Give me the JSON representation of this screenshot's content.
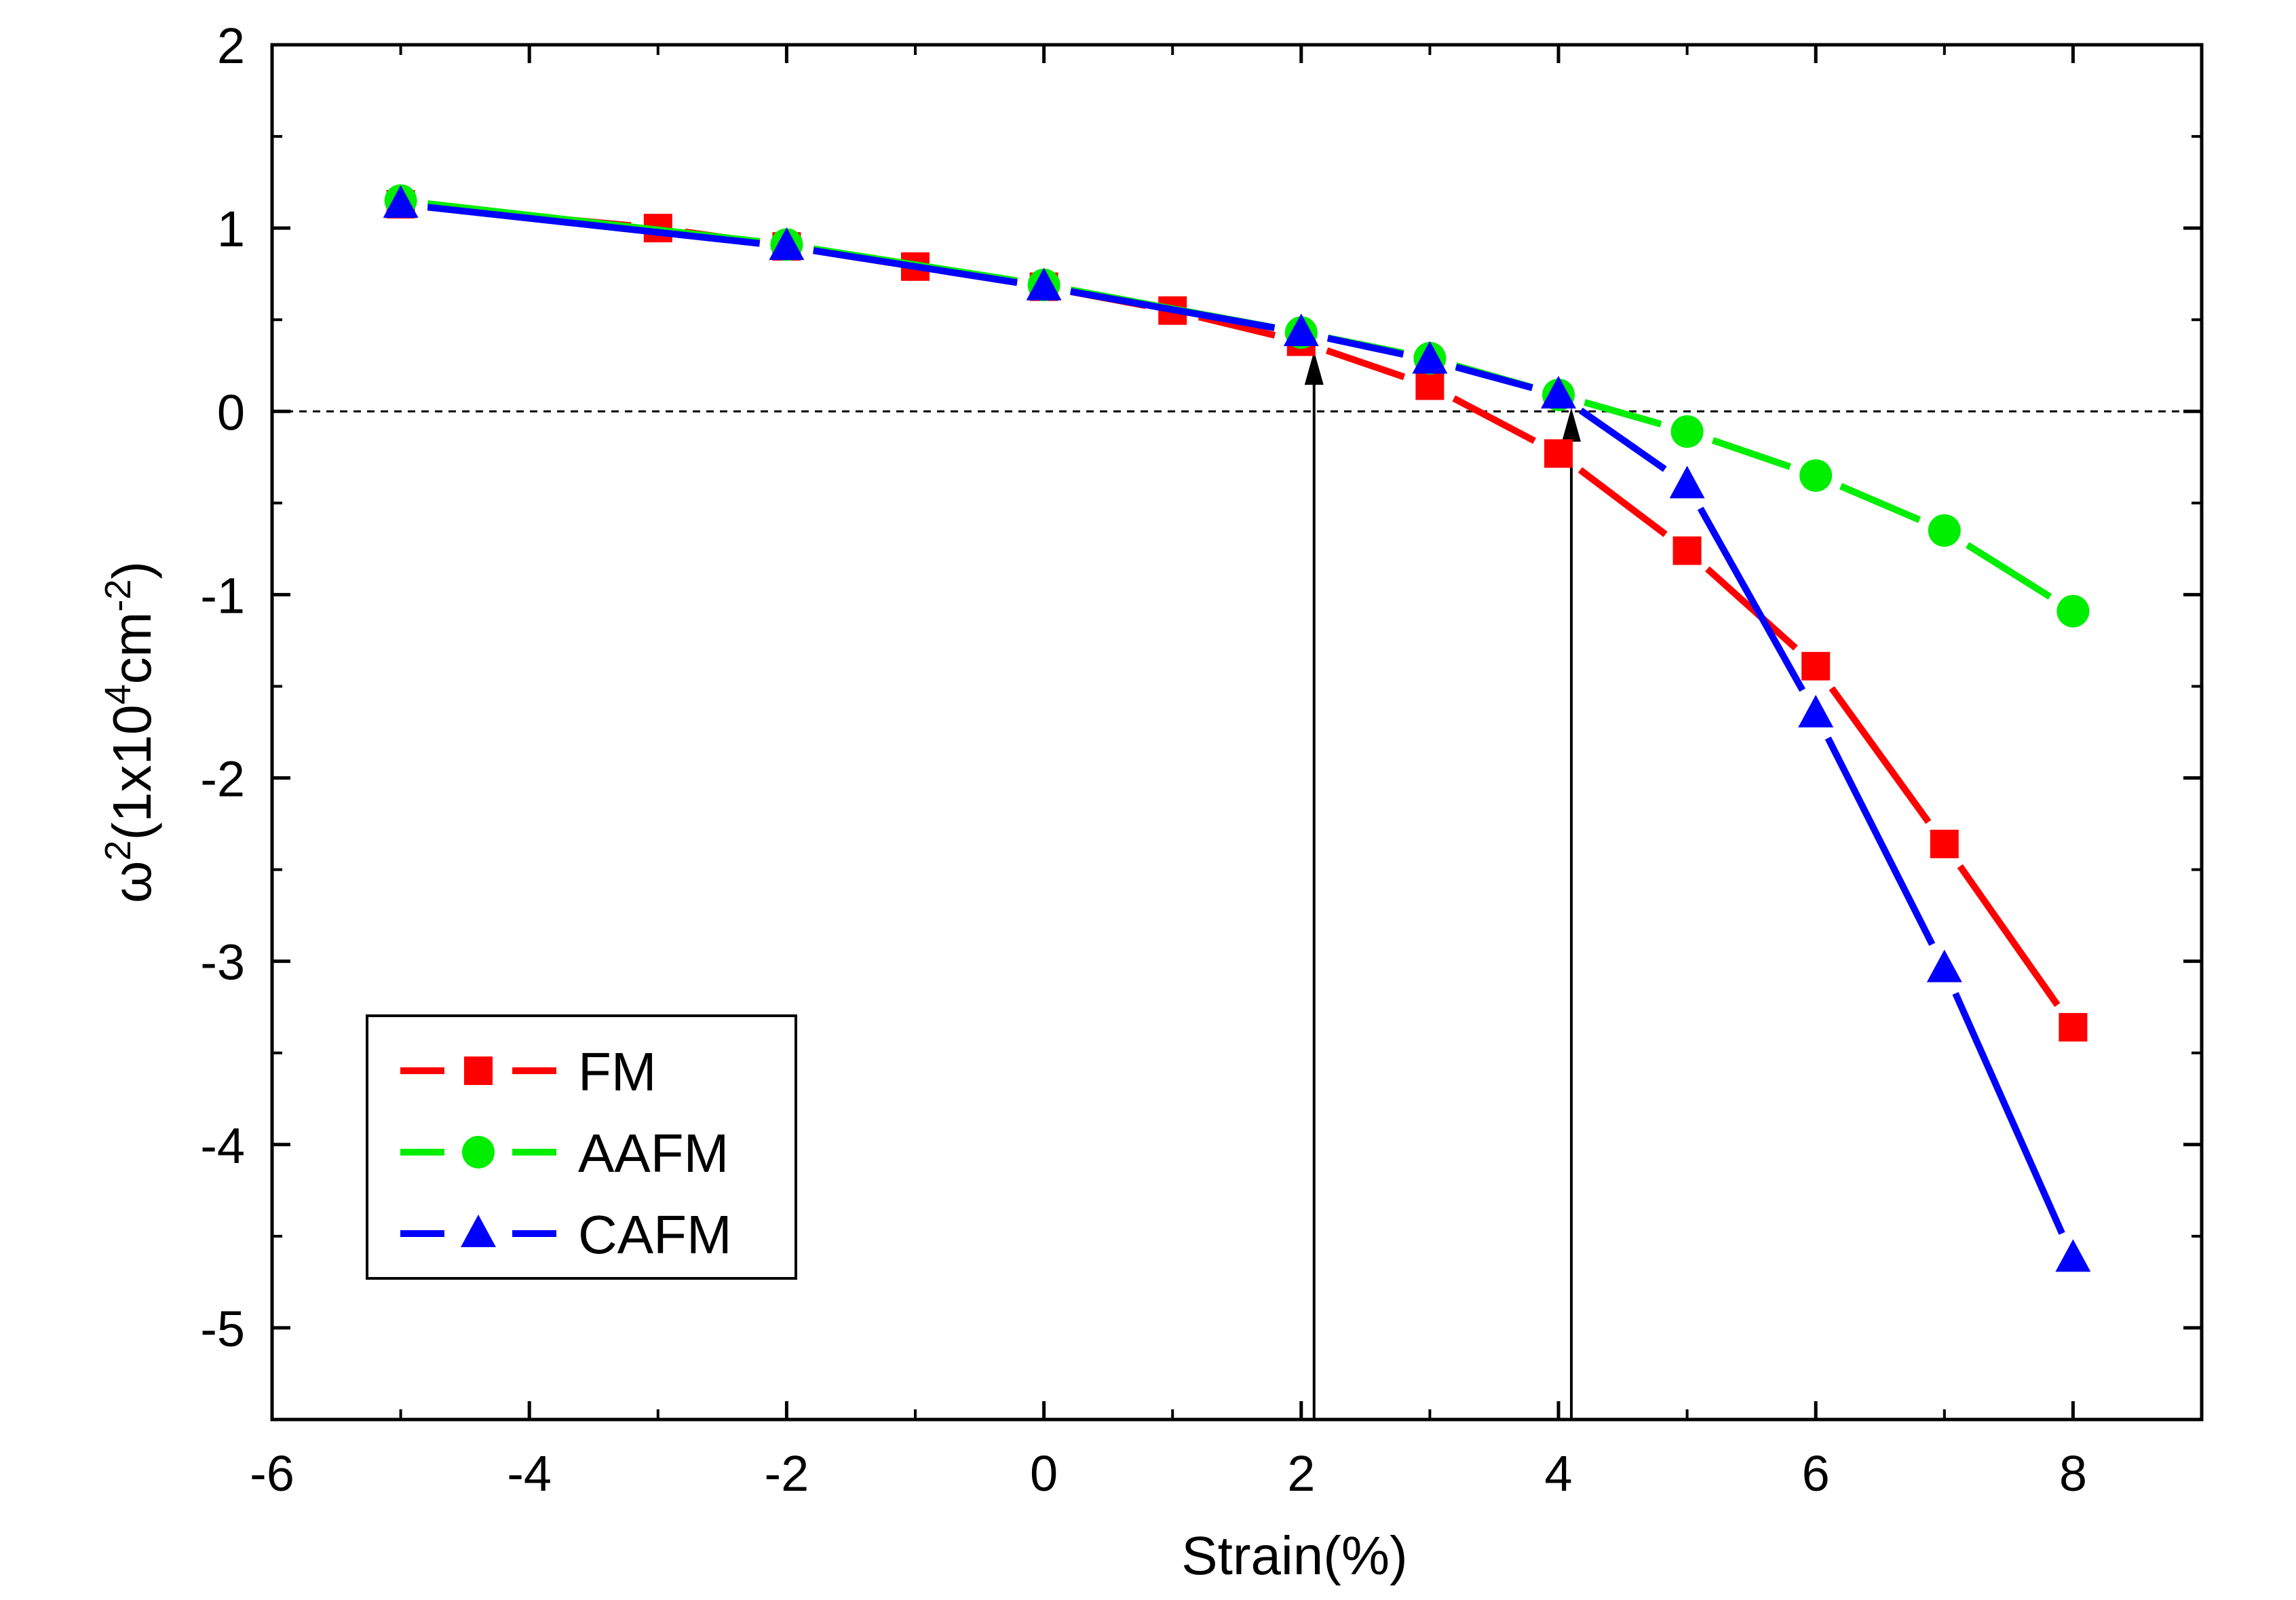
{
  "chart_data": {
    "type": "line",
    "title": "",
    "xlabel": "Strain(%)",
    "ylabel_main": "ω",
    "ylabel_sup1": "2",
    "ylabel_mid1": "(1x10",
    "ylabel_sup2": "4",
    "ylabel_mid2": "cm",
    "ylabel_sup3": "-2",
    "ylabel_end": ")",
    "xlim": [
      -6,
      9
    ],
    "ylim": [
      -5.5,
      2
    ],
    "xticks": [
      -6,
      -4,
      -2,
      0,
      2,
      4,
      6,
      8
    ],
    "yticks": [
      2,
      1,
      0,
      -1,
      -2,
      -3,
      -4,
      -5
    ],
    "xtick_labels": [
      "-6",
      "-4",
      "-2",
      "0",
      "2",
      "4",
      "6",
      "8"
    ],
    "ytick_labels": [
      "2",
      "1",
      "0",
      "-1",
      "-2",
      "-3",
      "-4",
      "-5"
    ],
    "grid": false,
    "legend_position": "bottom-left",
    "reference_line_y": 0,
    "annotations": [
      {
        "type": "arrow",
        "x": 2.1,
        "y_from": -5.5,
        "y_to": 0.33
      },
      {
        "type": "arrow",
        "x": 4.1,
        "y_from": -5.5,
        "y_to": 0.02
      }
    ],
    "series": [
      {
        "name": "FM",
        "color": "#ff0000",
        "marker": "square",
        "x": [
          -5,
          -3,
          -2,
          -1,
          0,
          1,
          2,
          3,
          4,
          5,
          6,
          7,
          8
        ],
        "y": [
          1.13,
          1.0,
          0.9,
          0.79,
          0.68,
          0.55,
          0.38,
          0.14,
          -0.23,
          -0.76,
          -1.39,
          -2.36,
          -3.36
        ]
      },
      {
        "name": "AAFM",
        "color": "#00ee00",
        "marker": "circle",
        "x": [
          -5,
          -2,
          0,
          2,
          3,
          4,
          5,
          6,
          7,
          8
        ],
        "y": [
          1.15,
          0.91,
          0.69,
          0.43,
          0.29,
          0.09,
          -0.11,
          -0.35,
          -0.65,
          -1.09
        ]
      },
      {
        "name": "CAFM",
        "color": "#0000ff",
        "marker": "triangle",
        "x": [
          -5,
          -2,
          0,
          2,
          3,
          4,
          5,
          6,
          7,
          8
        ],
        "y": [
          1.13,
          0.9,
          0.68,
          0.43,
          0.28,
          0.09,
          -0.4,
          -1.65,
          -3.04,
          -4.62
        ]
      }
    ]
  }
}
